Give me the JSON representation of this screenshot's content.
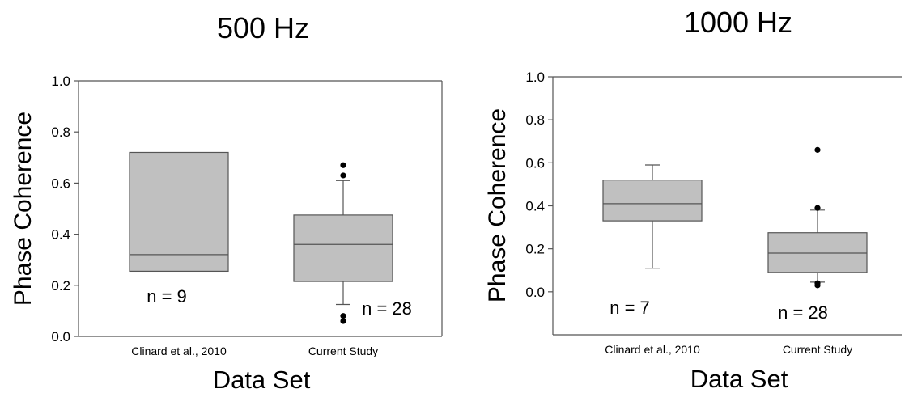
{
  "chart_data": [
    {
      "type": "box",
      "title": "500 Hz",
      "xlabel": "Data Set",
      "ylabel": "Phase Coherence",
      "ylim": [
        0.0,
        1.0
      ],
      "yticks": [
        "0.0",
        "0.2",
        "0.4",
        "0.6",
        "0.8",
        "1.0"
      ],
      "grid": false,
      "categories": [
        "Clinard et al., 2010",
        "Current Study"
      ],
      "boxes": [
        {
          "category": "Clinard et al., 2010",
          "q1": 0.255,
          "median": 0.32,
          "q3": 0.72,
          "whisker_low": null,
          "whisker_high": null,
          "outliers": [],
          "n_label": "n = 9"
        },
        {
          "category": "Current Study",
          "q1": 0.215,
          "median": 0.36,
          "q3": 0.475,
          "whisker_low": 0.125,
          "whisker_high": 0.61,
          "outliers": [
            0.67,
            0.63,
            0.08,
            0.06
          ],
          "n_label": "n = 28"
        }
      ]
    },
    {
      "type": "box",
      "title": "1000 Hz",
      "xlabel": "Data Set",
      "ylabel": "Phase Coherence",
      "ylim": [
        -0.2,
        1.0
      ],
      "yticks": [
        "0.0",
        "0.2",
        "0.4",
        "0.6",
        "0.8",
        "1.0"
      ],
      "grid": false,
      "categories": [
        "Clinard et al., 2010",
        "Current Study"
      ],
      "boxes": [
        {
          "category": "Clinard et al., 2010",
          "q1": 0.33,
          "median": 0.41,
          "q3": 0.52,
          "whisker_low": 0.11,
          "whisker_high": 0.59,
          "outliers": [],
          "n_label": "n = 7"
        },
        {
          "category": "Current Study",
          "q1": 0.09,
          "median": 0.18,
          "q3": 0.275,
          "whisker_low": 0.045,
          "whisker_high": 0.38,
          "outliers": [
            0.66,
            0.39,
            0.04,
            0.03
          ],
          "n_label": "n = 28"
        }
      ]
    }
  ]
}
